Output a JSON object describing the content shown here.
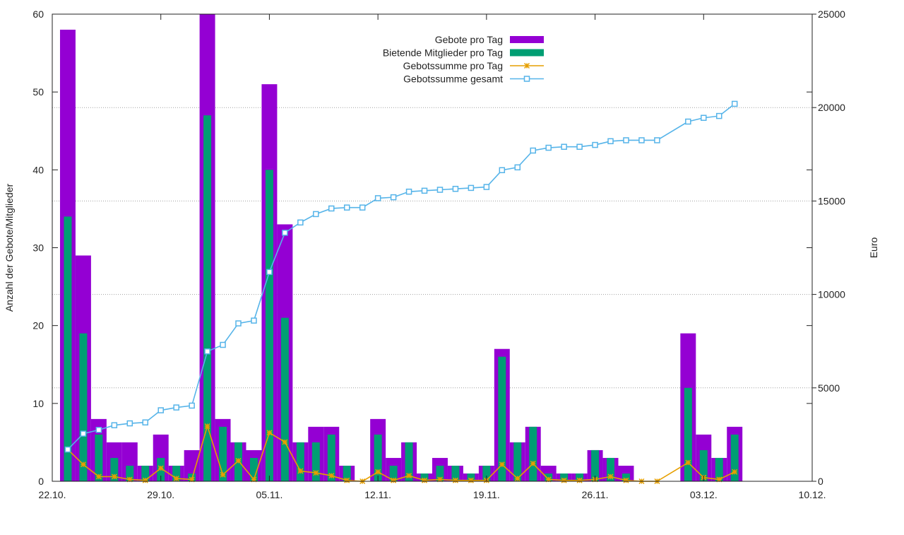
{
  "chart_data": {
    "type": "bar",
    "title": "",
    "xlabel": "",
    "ylabel": "Anzahl der Gebote/Mitglieder",
    "y2label": "Euro",
    "ylim": [
      0,
      60
    ],
    "y2lim": [
      0,
      25000
    ],
    "x_range_days": [
      0,
      49
    ],
    "x_ticks": [
      {
        "day": 0,
        "label": "22.10."
      },
      {
        "day": 7,
        "label": "29.10."
      },
      {
        "day": 14,
        "label": "05.11."
      },
      {
        "day": 21,
        "label": "12.11."
      },
      {
        "day": 28,
        "label": "19.11."
      },
      {
        "day": 35,
        "label": "26.11."
      },
      {
        "day": 42,
        "label": "03.12."
      },
      {
        "day": 49,
        "label": "10.12."
      }
    ],
    "y_ticks": [
      0,
      10,
      20,
      30,
      40,
      50,
      60
    ],
    "y2_ticks": [
      0,
      5000,
      10000,
      15000,
      20000,
      25000
    ],
    "y2_gridlines": [
      5000,
      10000,
      15000,
      20000
    ],
    "days": [
      1,
      2,
      3,
      4,
      5,
      6,
      7,
      8,
      9,
      10,
      11,
      12,
      13,
      14,
      15,
      16,
      17,
      18,
      19,
      20,
      21,
      22,
      23,
      24,
      25,
      26,
      27,
      28,
      29,
      30,
      31,
      32,
      33,
      34,
      35,
      36,
      37,
      38,
      39,
      41,
      42,
      43,
      44
    ],
    "series": [
      {
        "name": "Gebote pro Tag",
        "kind": "bar",
        "color": "#9400d3",
        "values": [
          58,
          29,
          8,
          5,
          5,
          2,
          6,
          2,
          4,
          60,
          8,
          5,
          4,
          51,
          33,
          5,
          7,
          7,
          2,
          0,
          8,
          3,
          5,
          1,
          3,
          2,
          1,
          2,
          17,
          5,
          7,
          2,
          1,
          1,
          4,
          3,
          2,
          0,
          0,
          19,
          6,
          3,
          7
        ]
      },
      {
        "name": "Bietende Mitglieder pro Tag",
        "kind": "bar",
        "color": "#009e73",
        "values": [
          34,
          19,
          6,
          3,
          2,
          2,
          3,
          2,
          1,
          47,
          7,
          5,
          3,
          40,
          21,
          5,
          5,
          6,
          2,
          0,
          6,
          2,
          5,
          1,
          2,
          2,
          1,
          2,
          16,
          5,
          7,
          1,
          1,
          1,
          4,
          3,
          1,
          0,
          0,
          12,
          4,
          3,
          6
        ]
      },
      {
        "name": "Gebotssumme pro Tag",
        "kind": "line",
        "color": "#e69f00",
        "values": [
          1700,
          900,
          250,
          250,
          100,
          50,
          700,
          150,
          100,
          2950,
          350,
          1100,
          100,
          2600,
          2100,
          550,
          450,
          300,
          50,
          0,
          500,
          50,
          300,
          50,
          100,
          50,
          50,
          50,
          900,
          150,
          950,
          100,
          50,
          50,
          100,
          250,
          50,
          0,
          0,
          1000,
          200,
          100,
          500
        ]
      },
      {
        "name": "Gebotssumme gesamt",
        "kind": "line",
        "color": "#56b4e9",
        "values": [
          1700,
          2550,
          2750,
          3000,
          3100,
          3150,
          3800,
          3950,
          4050,
          6950,
          7300,
          8450,
          8600,
          11200,
          13300,
          13850,
          14300,
          14600,
          14650,
          14650,
          15150,
          15200,
          15500,
          15550,
          15600,
          15650,
          15700,
          15750,
          16650,
          16800,
          17700,
          17850,
          17900,
          17900,
          18000,
          18200,
          18250,
          18250,
          18250,
          19250,
          19450,
          19550,
          20200
        ]
      }
    ],
    "legend_position": "top-center"
  }
}
